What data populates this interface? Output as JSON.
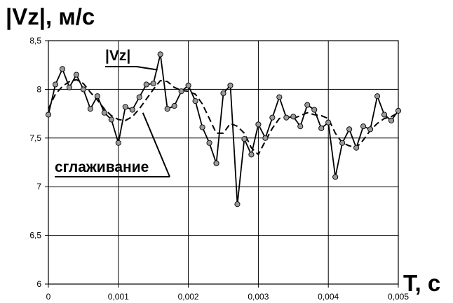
{
  "chart_data": {
    "type": "line",
    "ylabel": "|Vz|, м/с",
    "xlabel": "T, с",
    "xlim": [
      0,
      0.005
    ],
    "ylim": [
      6,
      8.5
    ],
    "x_ticks": [
      "0",
      "0,001",
      "0,002",
      "0,003",
      "0,004",
      "0,005"
    ],
    "y_ticks": [
      "6",
      "6,5",
      "7",
      "7,5",
      "8",
      "8,5"
    ],
    "grid": true,
    "annotations": [
      {
        "text": "|Vz|",
        "points_to": "|Vz|"
      },
      {
        "text": "сглаживание",
        "points_to": "сглаживание"
      }
    ],
    "series": [
      {
        "name": "|Vz|",
        "style": "solid-markers",
        "color": "#000000",
        "marker_color": "#9a9a9a",
        "x": [
          0,
          0.0001,
          0.0002,
          0.0003,
          0.0004,
          0.0005,
          0.0006,
          0.0007,
          0.0008,
          0.0009,
          0.001,
          0.0011,
          0.0012,
          0.0013,
          0.0014,
          0.0015,
          0.0016,
          0.0017,
          0.0018,
          0.0019,
          0.002,
          0.0021,
          0.0022,
          0.0023,
          0.0024,
          0.0025,
          0.0026,
          0.0027,
          0.0028,
          0.0029,
          0.003,
          0.0031,
          0.0032,
          0.0033,
          0.0034,
          0.0035,
          0.0036,
          0.0037,
          0.0038,
          0.0039,
          0.004,
          0.0041,
          0.0042,
          0.0043,
          0.0044,
          0.0045,
          0.0046,
          0.0047,
          0.0048,
          0.0049,
          0.005
        ],
        "y": [
          7.74,
          8.05,
          8.21,
          8.02,
          8.15,
          8.0,
          7.8,
          7.93,
          7.76,
          7.69,
          7.45,
          7.82,
          7.79,
          7.92,
          8.05,
          8.06,
          8.36,
          7.8,
          7.83,
          7.98,
          8.04,
          7.88,
          7.61,
          7.45,
          7.24,
          7.96,
          8.04,
          6.82,
          7.49,
          7.33,
          7.64,
          7.5,
          7.71,
          7.92,
          7.71,
          7.72,
          7.62,
          7.84,
          7.79,
          7.6,
          7.66,
          7.1,
          7.45,
          7.59,
          7.4,
          7.62,
          7.59,
          7.93,
          7.74,
          7.68,
          7.78
        ]
      },
      {
        "name": "сглаживание",
        "style": "dashed",
        "color": "#000000",
        "x": [
          0,
          0.0001,
          0.0002,
          0.0003,
          0.0004,
          0.0005,
          0.0006,
          0.0007,
          0.0008,
          0.0009,
          0.001,
          0.0011,
          0.0012,
          0.0013,
          0.0014,
          0.0015,
          0.0016,
          0.0017,
          0.0018,
          0.0019,
          0.002,
          0.0021,
          0.0022,
          0.0023,
          0.0024,
          0.0025,
          0.0026,
          0.0027,
          0.0028,
          0.0029,
          0.003,
          0.0031,
          0.0032,
          0.0033,
          0.0034,
          0.0035,
          0.0036,
          0.0037,
          0.0038,
          0.0039,
          0.004,
          0.0041,
          0.0042,
          0.0043,
          0.0044,
          0.0045,
          0.0046,
          0.0047,
          0.0048,
          0.0049,
          0.005
        ],
        "y": [
          7.8,
          7.95,
          8.03,
          8.08,
          8.1,
          8.06,
          7.97,
          7.89,
          7.8,
          7.73,
          7.69,
          7.68,
          7.72,
          7.8,
          7.9,
          8.0,
          8.09,
          8.08,
          8.02,
          7.99,
          7.98,
          7.95,
          7.85,
          7.7,
          7.55,
          7.55,
          7.65,
          7.62,
          7.55,
          7.4,
          7.33,
          7.47,
          7.6,
          7.7,
          7.72,
          7.7,
          7.73,
          7.76,
          7.74,
          7.73,
          7.7,
          7.55,
          7.45,
          7.42,
          7.4,
          7.48,
          7.58,
          7.65,
          7.7,
          7.72,
          7.76
        ]
      }
    ]
  }
}
